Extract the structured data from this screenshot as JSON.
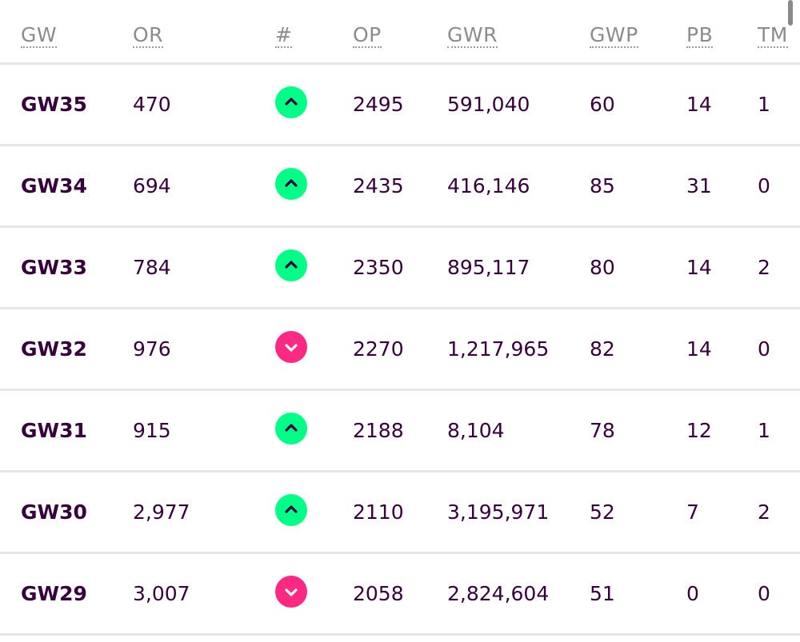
{
  "headers": {
    "gw": "GW",
    "or": "OR",
    "movement": "#",
    "op": "OP",
    "gwr": "GWR",
    "gwp": "GWP",
    "pb": "PB",
    "tm": "TM"
  },
  "colors": {
    "text": "#37003c",
    "up": "#00ff87",
    "down": "#ff2882",
    "header_text": "#8c8c8c"
  },
  "rows": [
    {
      "gw": "GW35",
      "or": "470",
      "movement": "up",
      "op": "2495",
      "gwr": "591,040",
      "gwp": "60",
      "pb": "14",
      "tm": "1"
    },
    {
      "gw": "GW34",
      "or": "694",
      "movement": "up",
      "op": "2435",
      "gwr": "416,146",
      "gwp": "85",
      "pb": "31",
      "tm": "0"
    },
    {
      "gw": "GW33",
      "or": "784",
      "movement": "up",
      "op": "2350",
      "gwr": "895,117",
      "gwp": "80",
      "pb": "14",
      "tm": "2"
    },
    {
      "gw": "GW32",
      "or": "976",
      "movement": "down",
      "op": "2270",
      "gwr": "1,217,965",
      "gwp": "82",
      "pb": "14",
      "tm": "0"
    },
    {
      "gw": "GW31",
      "or": "915",
      "movement": "up",
      "op": "2188",
      "gwr": "8,104",
      "gwp": "78",
      "pb": "12",
      "tm": "1"
    },
    {
      "gw": "GW30",
      "or": "2,977",
      "movement": "up",
      "op": "2110",
      "gwr": "3,195,971",
      "gwp": "52",
      "pb": "7",
      "tm": "2"
    },
    {
      "gw": "GW29",
      "or": "3,007",
      "movement": "down",
      "op": "2058",
      "gwr": "2,824,604",
      "gwp": "51",
      "pb": "0",
      "tm": "0"
    }
  ]
}
